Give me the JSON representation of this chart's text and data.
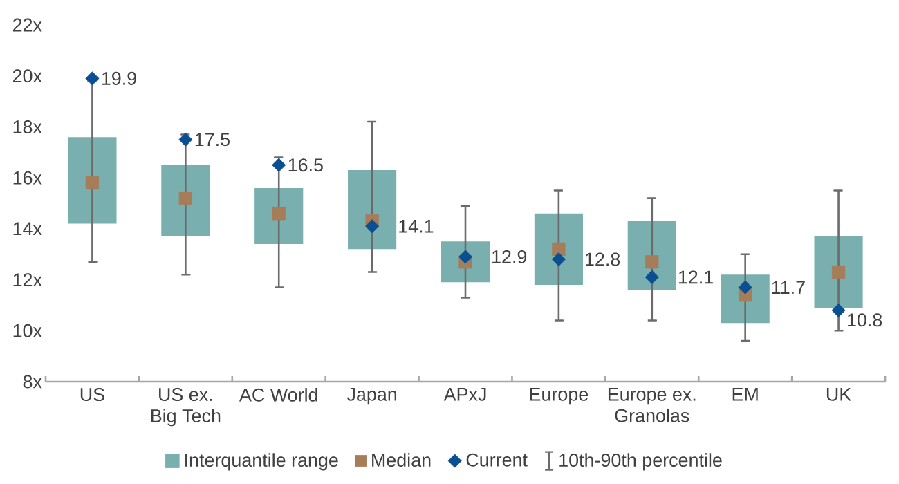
{
  "chart_data": {
    "type": "bar",
    "categories": [
      "US",
      "US ex.\nBig Tech",
      "AC World",
      "Japan",
      "APxJ",
      "Europe",
      "Europe ex.\nGranolas",
      "EM",
      "UK"
    ],
    "ylim": [
      8,
      22
    ],
    "yticks": [
      {
        "value": 8,
        "label": "8x"
      },
      {
        "value": 10,
        "label": "10x"
      },
      {
        "value": 12,
        "label": "12x"
      },
      {
        "value": 14,
        "label": "14x"
      },
      {
        "value": 16,
        "label": "16x"
      },
      {
        "value": 18,
        "label": "18x"
      },
      {
        "value": 20,
        "label": "20x"
      },
      {
        "value": 22,
        "label": "22x"
      }
    ],
    "legend": "bottom",
    "annotations": [
      "10th-90th percentile"
    ],
    "series": [
      {
        "name": "Interquantile range",
        "color": "#7aafb0",
        "base": [
          14.2,
          13.7,
          13.4,
          13.2,
          11.9,
          11.8,
          11.6,
          10.3,
          10.9
        ],
        "values": [
          3.4,
          2.8,
          2.2,
          3.1,
          1.6,
          2.8,
          2.7,
          1.9,
          2.8
        ]
      },
      {
        "name": "Median",
        "type": "scatter",
        "marker": "square",
        "color": "#a67c59",
        "values": [
          15.8,
          15.2,
          14.6,
          14.3,
          12.7,
          13.2,
          12.7,
          11.4,
          12.3
        ],
        "errors": [
          [
            12.7,
            19.8
          ],
          [
            12.2,
            17.7
          ],
          [
            11.7,
            16.8
          ],
          [
            12.3,
            18.2
          ],
          [
            11.3,
            14.9
          ],
          [
            10.4,
            15.5
          ],
          [
            10.4,
            15.2
          ],
          [
            9.6,
            13.0
          ],
          [
            10.0,
            15.5
          ]
        ]
      },
      {
        "name": "Current",
        "type": "scatter",
        "marker": "diamond",
        "color": "#0b4f93",
        "values": [
          19.9,
          17.5,
          16.5,
          14.1,
          12.9,
          12.8,
          12.1,
          11.7,
          10.8
        ],
        "data_labels": true
      }
    ]
  }
}
